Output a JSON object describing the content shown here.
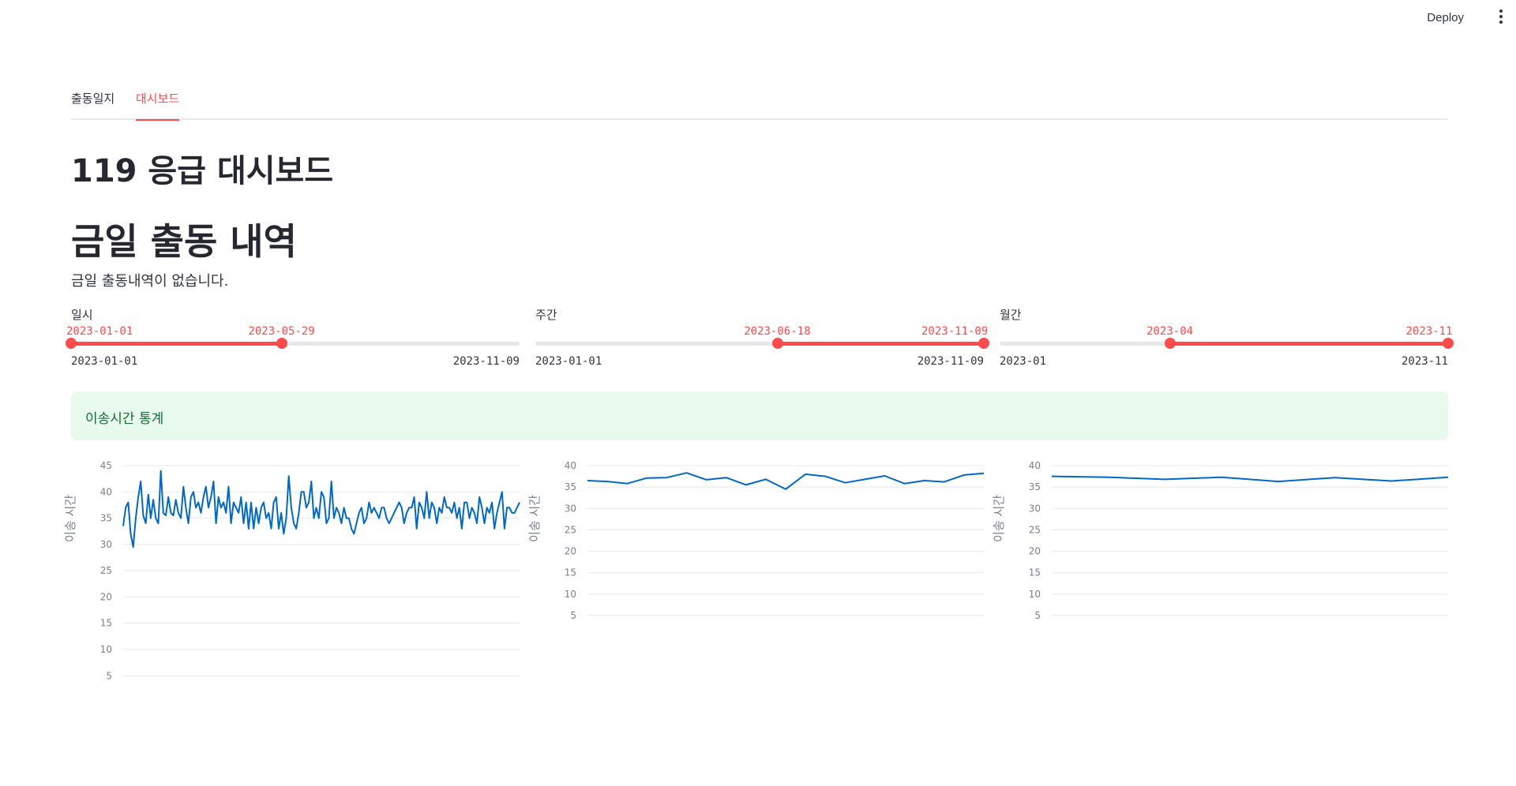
{
  "header": {
    "deploy_label": "Deploy"
  },
  "tabs": [
    {
      "label": "출동일지"
    },
    {
      "label": "대시보드"
    }
  ],
  "page": {
    "title": "119 응급 대시보드",
    "subtitle": "금일 출동 내역",
    "empty_message": "금일 출동내역이 없습니다."
  },
  "sliders": [
    {
      "label": "일시",
      "min": "2023-01-01",
      "max": "2023-11-09",
      "start": "2023-01-01",
      "end": "2023-05-29",
      "start_frac": 0.0,
      "end_frac": 0.47
    },
    {
      "label": "주간",
      "min": "2023-01-01",
      "max": "2023-11-09",
      "start": "2023-06-18",
      "end": "2023-11-09",
      "start_frac": 0.54,
      "end_frac": 1.0
    },
    {
      "label": "월간",
      "min": "2023-01",
      "max": "2023-11",
      "start": "2023-04",
      "end": "2023-11",
      "start_frac": 0.38,
      "end_frac": 1.0
    }
  ],
  "alert": {
    "text": "이송시간 통계"
  },
  "colors": {
    "accent": "#ff4b4b",
    "line": "#0068c9",
    "alert_bg": "#e8f9ee",
    "alert_text": "#176c36"
  },
  "chart_data": [
    {
      "type": "line",
      "ylabel": "이송 시간",
      "yticks": [
        5,
        10,
        15,
        20,
        25,
        30,
        35,
        40,
        45
      ],
      "ylim": [
        5,
        45
      ],
      "grid": true,
      "series": [
        {
          "values": [
            33.5,
            37,
            38,
            32,
            29.5,
            35,
            39,
            42,
            35.5,
            34,
            39.5,
            35,
            38.5,
            35,
            34,
            44,
            36,
            35.5,
            39,
            36,
            35.5,
            38.5,
            36,
            35,
            41,
            37,
            34,
            39,
            40,
            37,
            38,
            36,
            39,
            41,
            37,
            39,
            42,
            34,
            39,
            37,
            38,
            36,
            41,
            34,
            38,
            37,
            36,
            39,
            34,
            38,
            33,
            38,
            33,
            37,
            34,
            37,
            38,
            35,
            36,
            33,
            38,
            39,
            33,
            36,
            32,
            35,
            43,
            37,
            34,
            33,
            36,
            40,
            40,
            37,
            38,
            42,
            35,
            37,
            35,
            40,
            39,
            34,
            35,
            42,
            35,
            37,
            36,
            34,
            37,
            35,
            35,
            33,
            32,
            34,
            36,
            37,
            34,
            35,
            38,
            36,
            37,
            36,
            35,
            37,
            37,
            35,
            34,
            35,
            36,
            37,
            38,
            37,
            34,
            36,
            37,
            37,
            39,
            33,
            38,
            37,
            35,
            40,
            35,
            38,
            37,
            34,
            37,
            36,
            39,
            37,
            37,
            36,
            38,
            35,
            37,
            33,
            38,
            38,
            35,
            37,
            36,
            34,
            39,
            37,
            34,
            37,
            36,
            38,
            33,
            36,
            38,
            40,
            33,
            37,
            37,
            36,
            36,
            37,
            38
          ]
        }
      ]
    },
    {
      "type": "line",
      "ylabel": "이송 시간",
      "yticks": [
        5,
        10,
        15,
        20,
        25,
        30,
        35,
        40
      ],
      "ylim": [
        5,
        40
      ],
      "grid": true,
      "series": [
        {
          "values": [
            36.5,
            36.3,
            35.8,
            37.1,
            37.2,
            38.3,
            36.7,
            37.2,
            35.5,
            36.8,
            34.5,
            38,
            37.5,
            36,
            36.8,
            37.6,
            35.8,
            36.5,
            36.2,
            37.8,
            38.2
          ]
        }
      ]
    },
    {
      "type": "line",
      "ylabel": "이송 시간",
      "yticks": [
        5,
        10,
        15,
        20,
        25,
        30,
        35,
        40
      ],
      "ylim": [
        5,
        40
      ],
      "grid": true,
      "series": [
        {
          "values": [
            37.5,
            37.3,
            36.8,
            37.3,
            36.3,
            37.2,
            36.4,
            37.3
          ]
        }
      ]
    }
  ]
}
